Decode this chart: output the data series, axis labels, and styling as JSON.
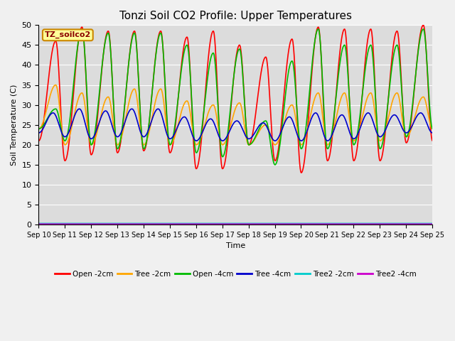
{
  "title": "Tonzi Soil CO2 Profile: Upper Temperatures",
  "ylabel": "Soil Temperature (C)",
  "xlabel": "Time",
  "annotation": "TZ_soilco2",
  "ylim": [
    0,
    50
  ],
  "n_days": 15,
  "pts_per_day": 96,
  "x_tick_labels": [
    "Sep 10",
    "Sep 11",
    "Sep 12",
    "Sep 13",
    "Sep 14",
    "Sep 15",
    "Sep 16",
    "Sep 17",
    "Sep 18",
    "Sep 19",
    "Sep 20",
    "Sep 21",
    "Sep 22",
    "Sep 23",
    "Sep 24",
    "Sep 25"
  ],
  "bg_color": "#dcdcdc",
  "fig_color": "#f0f0f0",
  "series_colors": {
    "Open -2cm": "#ff0000",
    "Tree -2cm": "#ffa500",
    "Open -4cm": "#00bb00",
    "Tree -4cm": "#0000cc",
    "Tree2 -2cm": "#00cccc",
    "Tree2 -4cm": "#cc00cc"
  },
  "open2_peaks": [
    46,
    49.5,
    48.5,
    48.5,
    48.5,
    47,
    48.5,
    45,
    42,
    46.5,
    49.5,
    49,
    49,
    48.5,
    50
  ],
  "open2_troughs": [
    21,
    16,
    17.5,
    18,
    18.5,
    18,
    14,
    14,
    20,
    16,
    13,
    16,
    16,
    16,
    20.5
  ],
  "open4_peaks": [
    29,
    49,
    48,
    48,
    48,
    45,
    43,
    44,
    26,
    41,
    49,
    45,
    45,
    45,
    49
  ],
  "open4_troughs": [
    24,
    21,
    20,
    19,
    19,
    20,
    18,
    17,
    20,
    15,
    19,
    19,
    20,
    19,
    22
  ],
  "tree2_peaks": [
    35,
    33,
    32,
    34,
    34,
    31,
    30,
    30.5,
    25,
    30,
    33,
    33,
    33,
    33,
    32
  ],
  "tree2_troughs": [
    24,
    20,
    20,
    20,
    20,
    20,
    20,
    20,
    20,
    20,
    20,
    20,
    21,
    21,
    22
  ],
  "tree4_peaks": [
    28,
    29,
    28.5,
    29,
    29,
    27,
    26.5,
    26,
    25.5,
    27,
    28,
    27.5,
    28,
    27.5,
    28
  ],
  "tree4_troughs": [
    23,
    22,
    21.5,
    22,
    22,
    21.5,
    21,
    21,
    21.5,
    21,
    21,
    21,
    21.5,
    22,
    23
  ],
  "peak_phase": 0.65,
  "lw": 1.2
}
